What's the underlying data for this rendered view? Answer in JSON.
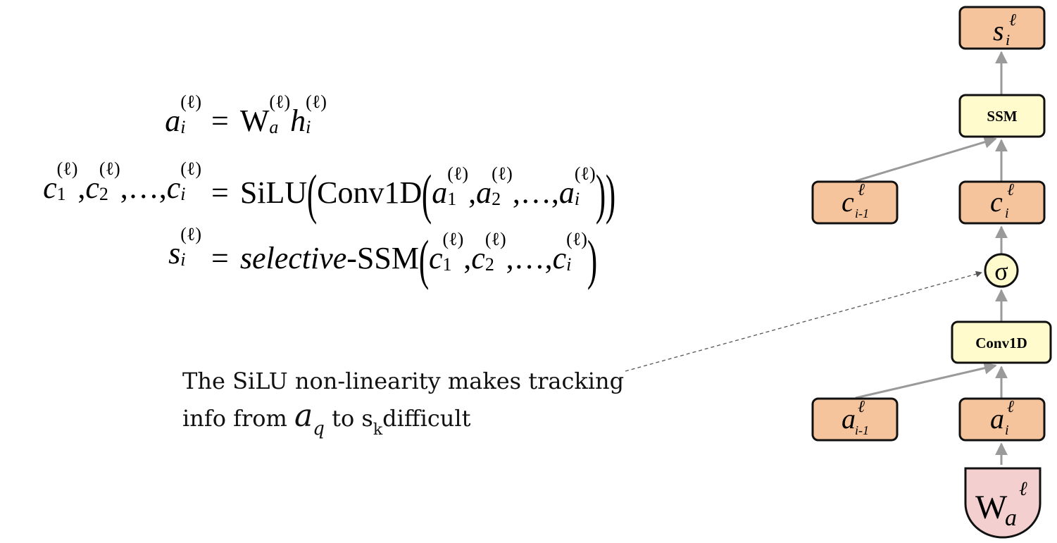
{
  "equations": {
    "eq1": {
      "lhs_base": "a",
      "lhs_sup": "(ℓ)",
      "lhs_sub": "i",
      "equals": "=",
      "W": "W",
      "W_sub": "a",
      "W_sup": "(ℓ)",
      "h": "h",
      "h_sup": "(ℓ)",
      "h_sub": "i"
    },
    "eq2": {
      "c": "c",
      "sup": "(ℓ)",
      "sub1": "1",
      "sub2": "2",
      "subi": "i",
      "sep": ",",
      "dots": "…",
      "equals": "=",
      "silu": "SiLU",
      "conv": "Conv1D",
      "a": "a"
    },
    "eq3": {
      "lhs_base": "s",
      "lhs_sup": "(ℓ)",
      "lhs_sub": "i",
      "equals": "=",
      "selective": "selective",
      "ssm": "-SSM",
      "c": "c",
      "sub1": "1",
      "sub2": "2",
      "subi": "i",
      "sep": ",",
      "dots": "…"
    }
  },
  "annotation": {
    "line1": "The SiLU non-linearity makes tracking",
    "line2_prefix": "info from",
    "a_base": "a",
    "a_sub": "q",
    "to": "to",
    "s_base": "s",
    "s_sub": "k",
    "suffix": "difficult"
  },
  "diagram": {
    "s_node": {
      "base": "s",
      "sup": "ℓ",
      "sub": "i"
    },
    "ssm_label": "SSM",
    "c_prev": {
      "base": "c",
      "sup": "ℓ",
      "sub": "i-1"
    },
    "c_cur": {
      "base": "c",
      "sup": "ℓ",
      "sub": "i"
    },
    "sigma": "σ",
    "conv_label": "Conv1D",
    "a_prev": {
      "base": "a",
      "sup": "ℓ",
      "sub": "i-1"
    },
    "a_cur": {
      "base": "a",
      "sup": "ℓ",
      "sub": "i"
    },
    "w_node": {
      "base": "W",
      "sup": "ℓ",
      "sub": "a"
    },
    "colors": {
      "orange": "#F5C49D",
      "yellow": "#FFFBCC",
      "pink": "#F4CFCF",
      "arrow": "#9A9A9A"
    }
  }
}
